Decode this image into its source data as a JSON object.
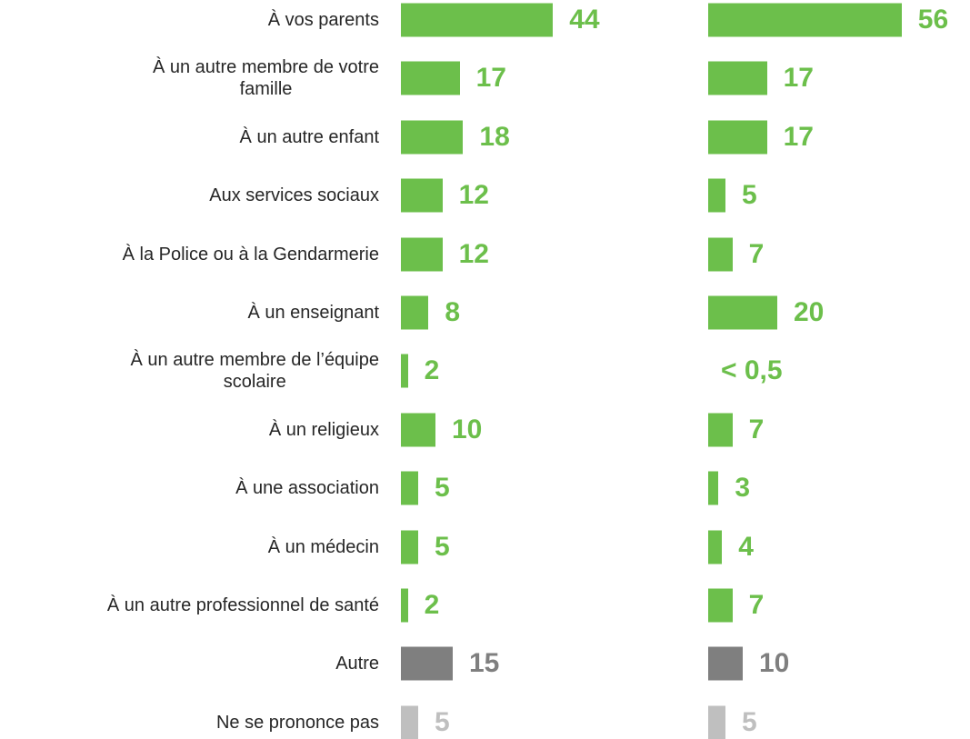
{
  "chart_data": {
    "type": "bar",
    "orientation": "horizontal",
    "categories": [
      "À vos parents",
      "À un autre membre de votre\nfamille",
      "À un autre enfant",
      "Aux services sociaux",
      "À la Police ou à la Gendarmerie",
      "À un enseignant",
      "À un autre membre de l’équipe\nscolaire",
      "À un religieux",
      "À une association",
      "À un médecin",
      "À un autre professionnel de santé",
      "Autre",
      "Ne se prononce pas"
    ],
    "series": [
      {
        "values": [
          44,
          17,
          18,
          12,
          12,
          8,
          2,
          10,
          5,
          5,
          2,
          15,
          5
        ],
        "colors": [
          "#6cbf4b",
          "#6cbf4b",
          "#6cbf4b",
          "#6cbf4b",
          "#6cbf4b",
          "#6cbf4b",
          "#6cbf4b",
          "#6cbf4b",
          "#6cbf4b",
          "#6cbf4b",
          "#6cbf4b",
          "#7f7f7f",
          "#bfbfbf"
        ]
      },
      {
        "values": [
          56,
          17,
          17,
          5,
          7,
          20,
          0,
          7,
          3,
          4,
          7,
          10,
          5
        ],
        "value_labels": [
          null,
          null,
          null,
          null,
          null,
          null,
          "< 0,5",
          null,
          null,
          null,
          null,
          null,
          null
        ],
        "colors": [
          "#6cbf4b",
          "#6cbf4b",
          "#6cbf4b",
          "#6cbf4b",
          "#6cbf4b",
          "#6cbf4b",
          "#6cbf4b",
          "#6cbf4b",
          "#6cbf4b",
          "#6cbf4b",
          "#6cbf4b",
          "#7f7f7f",
          "#bfbfbf"
        ]
      }
    ]
  }
}
